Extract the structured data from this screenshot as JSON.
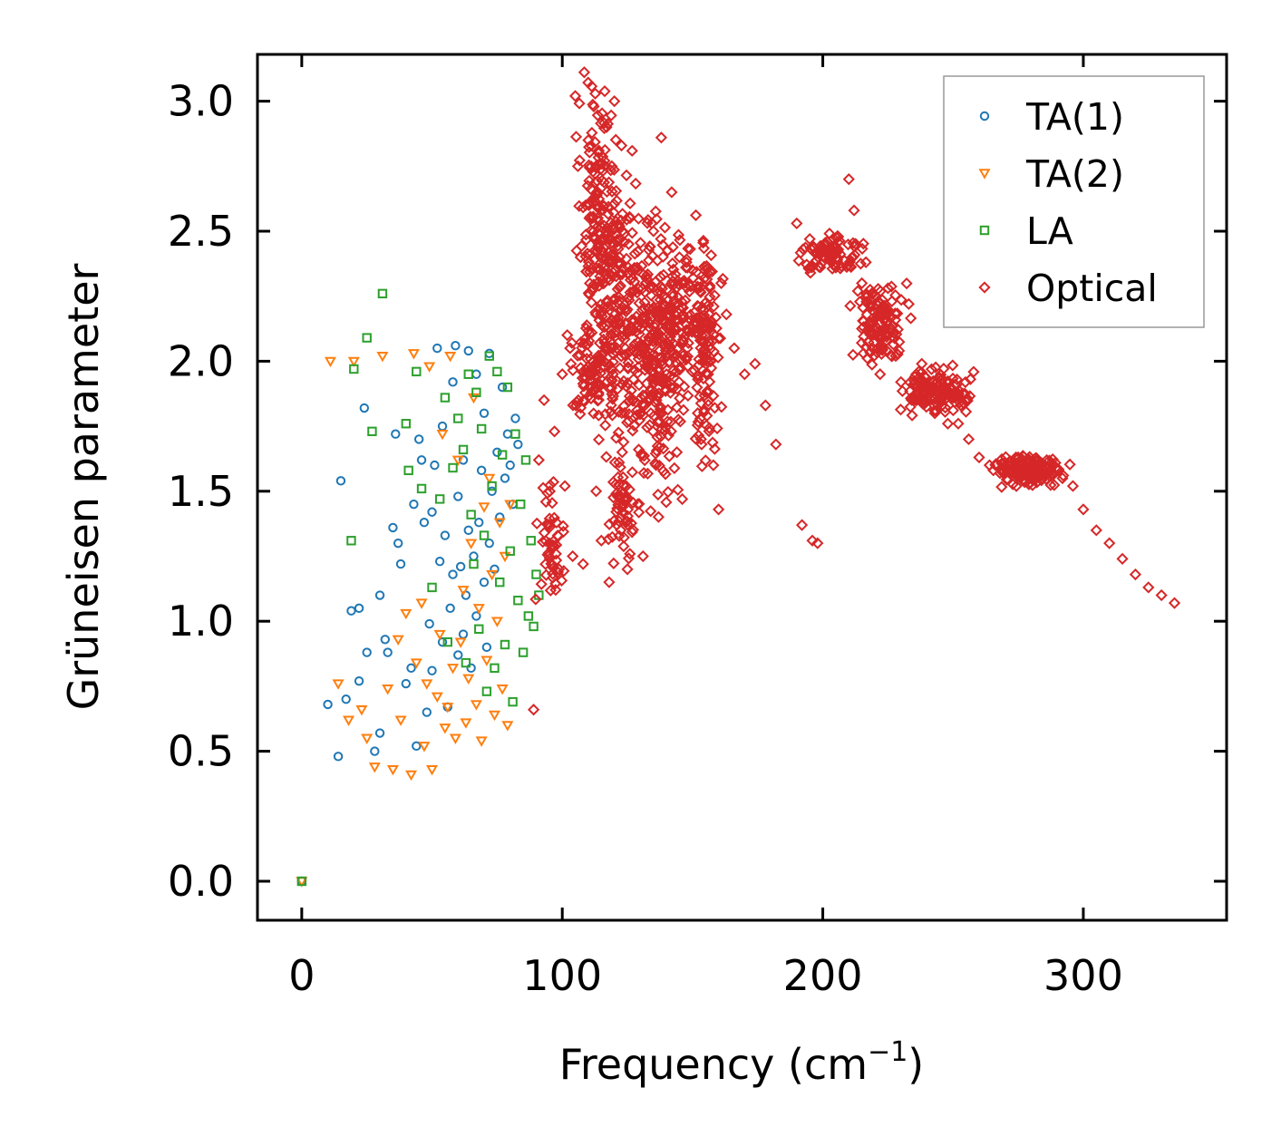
{
  "chart_data": {
    "type": "scatter",
    "title": "",
    "xlabel": "Frequency (cm",
    "xlabel_sup": "−1",
    "xlabel_tail": ")",
    "ylabel": "Grüneisen parameter",
    "xlim": [
      -17,
      355
    ],
    "ylim": [
      -0.15,
      3.18
    ],
    "xticks": [
      0,
      100,
      200,
      300
    ],
    "xtick_labels": [
      "0",
      "100",
      "200",
      "300"
    ],
    "yticks": [
      0.0,
      0.5,
      1.0,
      1.5,
      2.0,
      2.5,
      3.0
    ],
    "ytick_labels": [
      "0.0",
      "0.5",
      "1.0",
      "1.5",
      "2.0",
      "2.5",
      "3.0"
    ],
    "grid": false,
    "legend_position": "top-right",
    "series": [
      {
        "name": "TA(1)",
        "marker": "circle",
        "color": "#1f77b4",
        "points": [
          [
            0,
            0
          ],
          [
            10,
            0.68
          ],
          [
            14,
            0.48
          ],
          [
            15,
            1.54
          ],
          [
            17,
            0.7
          ],
          [
            19,
            1.04
          ],
          [
            22,
            1.05
          ],
          [
            22,
            0.77
          ],
          [
            24,
            1.82
          ],
          [
            25,
            0.88
          ],
          [
            28,
            0.5
          ],
          [
            30,
            0.57
          ],
          [
            30,
            1.1
          ],
          [
            32,
            0.93
          ],
          [
            33,
            0.88
          ],
          [
            35,
            1.36
          ],
          [
            36,
            1.72
          ],
          [
            37,
            1.3
          ],
          [
            38,
            1.22
          ],
          [
            40,
            0.76
          ],
          [
            42,
            0.82
          ],
          [
            43,
            1.45
          ],
          [
            44,
            0.52
          ],
          [
            45,
            1.7
          ],
          [
            46,
            1.62
          ],
          [
            47,
            1.38
          ],
          [
            48,
            0.65
          ],
          [
            49,
            0.99
          ],
          [
            50,
            1.42
          ],
          [
            50,
            0.81
          ],
          [
            51,
            1.6
          ],
          [
            52,
            2.05
          ],
          [
            53,
            1.23
          ],
          [
            54,
            0.92
          ],
          [
            54,
            1.75
          ],
          [
            55,
            1.33
          ],
          [
            56,
            0.67
          ],
          [
            57,
            1.05
          ],
          [
            58,
            1.92
          ],
          [
            58,
            1.18
          ],
          [
            59,
            2.06
          ],
          [
            60,
            0.87
          ],
          [
            60,
            1.48
          ],
          [
            61,
            1.21
          ],
          [
            62,
            0.95
          ],
          [
            62,
            1.62
          ],
          [
            63,
            1.1
          ],
          [
            64,
            2.04
          ],
          [
            64,
            1.35
          ],
          [
            65,
            0.82
          ],
          [
            66,
            1.25
          ],
          [
            67,
            1.95
          ],
          [
            67,
            1.02
          ],
          [
            68,
            1.38
          ],
          [
            69,
            1.58
          ],
          [
            70,
            1.15
          ],
          [
            70,
            1.8
          ],
          [
            71,
            0.9
          ],
          [
            72,
            1.3
          ],
          [
            72,
            2.03
          ],
          [
            73,
            1.5
          ],
          [
            74,
            1.2
          ],
          [
            75,
            1.65
          ],
          [
            76,
            1.4
          ],
          [
            77,
            1.9
          ],
          [
            78,
            1.55
          ],
          [
            79,
            1.72
          ],
          [
            80,
            1.6
          ],
          [
            81,
            1.45
          ],
          [
            82,
            1.78
          ],
          [
            83,
            1.68
          ]
        ]
      },
      {
        "name": "TA(2)",
        "marker": "triangle",
        "color": "#ff7f0e",
        "points": [
          [
            0,
            0
          ],
          [
            11,
            2.0
          ],
          [
            14,
            0.76
          ],
          [
            18,
            0.62
          ],
          [
            20,
            2.0
          ],
          [
            23,
            0.66
          ],
          [
            25,
            0.55
          ],
          [
            28,
            0.44
          ],
          [
            31,
            2.02
          ],
          [
            33,
            0.74
          ],
          [
            35,
            0.43
          ],
          [
            37,
            0.93
          ],
          [
            38,
            0.62
          ],
          [
            40,
            1.03
          ],
          [
            42,
            0.41
          ],
          [
            43,
            2.03
          ],
          [
            44,
            0.84
          ],
          [
            46,
            1.07
          ],
          [
            47,
            0.52
          ],
          [
            48,
            0.76
          ],
          [
            49,
            1.98
          ],
          [
            50,
            0.43
          ],
          [
            52,
            0.71
          ],
          [
            53,
            0.95
          ],
          [
            54,
            1.72
          ],
          [
            55,
            0.59
          ],
          [
            56,
            0.67
          ],
          [
            57,
            2.02
          ],
          [
            58,
            0.82
          ],
          [
            59,
            0.55
          ],
          [
            60,
            1.62
          ],
          [
            61,
            0.92
          ],
          [
            62,
            1.12
          ],
          [
            63,
            0.61
          ],
          [
            64,
            0.78
          ],
          [
            65,
            1.3
          ],
          [
            66,
            1.86
          ],
          [
            67,
            0.68
          ],
          [
            68,
            1.05
          ],
          [
            69,
            0.54
          ],
          [
            70,
            1.44
          ],
          [
            71,
            0.85
          ],
          [
            72,
            1.55
          ],
          [
            73,
            1.18
          ],
          [
            74,
            0.64
          ],
          [
            75,
            1.0
          ],
          [
            76,
            1.38
          ],
          [
            77,
            0.74
          ],
          [
            78,
            1.25
          ],
          [
            79,
            0.6
          ],
          [
            80,
            1.45
          ]
        ]
      },
      {
        "name": "LA",
        "marker": "square",
        "color": "#2ca02c",
        "points": [
          [
            0,
            0
          ],
          [
            19,
            1.31
          ],
          [
            20,
            1.97
          ],
          [
            25,
            2.09
          ],
          [
            27,
            1.73
          ],
          [
            31,
            2.26
          ],
          [
            40,
            1.76
          ],
          [
            41,
            1.58
          ],
          [
            44,
            1.96
          ],
          [
            46,
            1.51
          ],
          [
            50,
            1.13
          ],
          [
            53,
            1.47
          ],
          [
            55,
            1.86
          ],
          [
            56,
            0.92
          ],
          [
            58,
            1.59
          ],
          [
            60,
            1.78
          ],
          [
            62,
            1.66
          ],
          [
            63,
            0.84
          ],
          [
            64,
            1.95
          ],
          [
            65,
            1.41
          ],
          [
            66,
            1.22
          ],
          [
            67,
            1.88
          ],
          [
            68,
            0.97
          ],
          [
            69,
            1.74
          ],
          [
            70,
            1.33
          ],
          [
            71,
            0.73
          ],
          [
            72,
            2.02
          ],
          [
            73,
            1.52
          ],
          [
            74,
            0.82
          ],
          [
            75,
            1.96
          ],
          [
            76,
            1.15
          ],
          [
            77,
            1.64
          ],
          [
            78,
            0.91
          ],
          [
            79,
            1.9
          ],
          [
            80,
            1.27
          ],
          [
            81,
            0.69
          ],
          [
            82,
            1.72
          ],
          [
            83,
            1.08
          ],
          [
            84,
            1.45
          ],
          [
            85,
            0.88
          ],
          [
            86,
            1.62
          ],
          [
            87,
            1.02
          ],
          [
            88,
            1.31
          ],
          [
            89,
            0.98
          ],
          [
            90,
            1.18
          ],
          [
            91,
            1.1
          ]
        ]
      },
      {
        "name": "Optical",
        "marker": "diamond",
        "color": "#d62728",
        "points": [
          [
            89,
            0.66
          ],
          [
            91,
            1.62
          ],
          [
            93,
            1.85
          ],
          [
            95,
            1.3
          ],
          [
            97,
            1.73
          ],
          [
            100,
            1.95
          ],
          [
            101,
            1.52
          ],
          [
            103,
            2.05
          ],
          [
            104,
            1.25
          ],
          [
            105,
            3.02
          ],
          [
            106,
            2.75
          ],
          [
            107,
            2.4
          ],
          [
            108,
            1.22
          ],
          [
            109,
            2.6
          ],
          [
            110,
            2.85
          ],
          [
            111,
            1.95
          ],
          [
            112,
            2.5
          ],
          [
            113,
            1.5
          ],
          [
            114,
            2.2
          ],
          [
            115,
            1.31
          ],
          [
            116,
            2.3
          ],
          [
            117,
            2.9
          ],
          [
            118,
            1.15
          ],
          [
            119,
            2.75
          ],
          [
            120,
            3.0
          ],
          [
            121,
            2.05
          ],
          [
            122,
            2.4
          ],
          [
            123,
            1.65
          ],
          [
            124,
            2.2
          ],
          [
            125,
            1.2
          ],
          [
            126,
            2.55
          ],
          [
            127,
            1.85
          ],
          [
            128,
            2.35
          ],
          [
            129,
            1.45
          ],
          [
            130,
            2.15
          ],
          [
            131,
            1.25
          ],
          [
            132,
            2.3
          ],
          [
            134,
            1.8
          ],
          [
            135,
            2.5
          ],
          [
            136,
            2.1
          ],
          [
            138,
            2.86
          ],
          [
            140,
            1.95
          ],
          [
            141,
            2.2
          ],
          [
            142,
            2.65
          ],
          [
            144,
            1.65
          ],
          [
            146,
            2.3
          ],
          [
            148,
            2.05
          ],
          [
            150,
            2.35
          ],
          [
            152,
            1.8
          ],
          [
            154,
            2.15
          ],
          [
            156,
            1.95
          ],
          [
            158,
            1.6
          ],
          [
            160,
            1.43
          ],
          [
            161,
            2.3
          ],
          [
            163,
            2.18
          ],
          [
            166,
            2.05
          ],
          [
            170,
            1.95
          ],
          [
            174,
            1.99
          ],
          [
            178,
            1.83
          ],
          [
            182,
            1.68
          ],
          [
            192,
            1.37
          ],
          [
            196,
            1.31
          ],
          [
            198,
            1.3
          ],
          [
            190,
            2.53
          ],
          [
            195,
            2.47
          ],
          [
            200,
            2.42
          ],
          [
            205,
            2.36
          ],
          [
            210,
            2.7
          ],
          [
            212,
            2.58
          ],
          [
            215,
            2.3
          ],
          [
            218,
            2.22
          ],
          [
            220,
            2.12
          ],
          [
            222,
            1.95
          ],
          [
            225,
            2.1
          ],
          [
            228,
            2.02
          ],
          [
            230,
            1.92
          ],
          [
            233,
            2.22
          ],
          [
            236,
            1.85
          ],
          [
            238,
            1.99
          ],
          [
            240,
            1.9
          ],
          [
            243,
            1.8
          ],
          [
            246,
            1.86
          ],
          [
            248,
            1.76
          ],
          [
            252,
            1.76
          ],
          [
            256,
            1.7
          ],
          [
            260,
            1.63
          ],
          [
            264,
            1.6
          ],
          [
            268,
            1.57
          ],
          [
            272,
            1.6
          ],
          [
            275,
            1.63
          ],
          [
            280,
            1.55
          ],
          [
            284,
            1.6
          ],
          [
            288,
            1.57
          ],
          [
            292,
            1.55
          ],
          [
            296,
            1.52
          ],
          [
            300,
            1.43
          ],
          [
            305,
            1.35
          ],
          [
            310,
            1.3
          ],
          [
            315,
            1.24
          ],
          [
            320,
            1.18
          ],
          [
            325,
            1.13
          ],
          [
            330,
            1.1
          ],
          [
            335,
            1.07
          ]
        ]
      }
    ],
    "optical_clusters": [
      {
        "cx": 113,
        "cy": 2.55,
        "sx": 5,
        "sy": 0.35,
        "n": 140
      },
      {
        "cx": 120,
        "cy": 2.25,
        "sx": 5,
        "sy": 0.45,
        "n": 160
      },
      {
        "cx": 130,
        "cy": 2.1,
        "sx": 9,
        "sy": 0.3,
        "n": 180
      },
      {
        "cx": 138,
        "cy": 1.9,
        "sx": 7,
        "sy": 0.4,
        "n": 140
      },
      {
        "cx": 145,
        "cy": 2.2,
        "sx": 7,
        "sy": 0.18,
        "n": 120
      },
      {
        "cx": 155,
        "cy": 2.05,
        "sx": 4,
        "sy": 0.35,
        "n": 110
      },
      {
        "cx": 112,
        "cy": 1.95,
        "sx": 6,
        "sy": 0.12,
        "n": 80
      },
      {
        "cx": 123,
        "cy": 1.4,
        "sx": 4,
        "sy": 0.12,
        "n": 50
      },
      {
        "cx": 96,
        "cy": 1.3,
        "sx": 4,
        "sy": 0.15,
        "n": 50
      },
      {
        "cx": 203,
        "cy": 2.42,
        "sx": 8,
        "sy": 0.05,
        "n": 90
      },
      {
        "cx": 222,
        "cy": 2.15,
        "sx": 7,
        "sy": 0.12,
        "n": 120
      },
      {
        "cx": 243,
        "cy": 1.88,
        "sx": 9,
        "sy": 0.06,
        "n": 140
      },
      {
        "cx": 280,
        "cy": 1.58,
        "sx": 9,
        "sy": 0.04,
        "n": 150
      }
    ]
  }
}
